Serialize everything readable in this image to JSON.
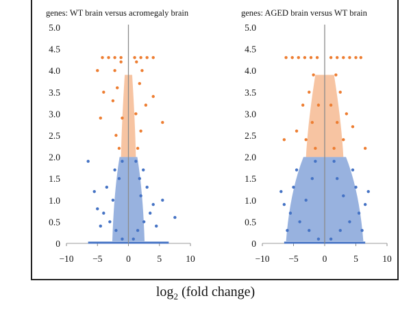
{
  "chart_data": [
    {
      "type": "scatter",
      "title": "genes: WT brain versus acromegaly brain",
      "xlabel": "log2 (fold change)",
      "ylabel": "",
      "xlim": [
        -10,
        10
      ],
      "ylim": [
        0,
        5.0
      ],
      "xticks": [
        "−10",
        "−5",
        "0",
        "5",
        "10"
      ],
      "yticks": [
        "0",
        "0.5",
        "1.0",
        "1.5",
        "2.0",
        "2.5",
        "3.0",
        "3.5",
        "4.0",
        "4.5",
        "5.0"
      ],
      "threshold_y": 2.0,
      "series": [
        {
          "color": "#4472c4",
          "points": [
            [
              -1.0,
              0.1
            ],
            [
              0.8,
              0.1
            ],
            [
              -2.0,
              0.3
            ],
            [
              1.5,
              0.3
            ],
            [
              -3.0,
              0.5
            ],
            [
              2.5,
              0.5
            ],
            [
              -4.0,
              0.7
            ],
            [
              3.5,
              0.7
            ],
            [
              -5.0,
              0.8
            ],
            [
              4.0,
              0.9
            ],
            [
              -2.5,
              1.0
            ],
            [
              2.0,
              1.1
            ],
            [
              -3.5,
              1.3
            ],
            [
              3.0,
              1.3
            ],
            [
              -1.5,
              1.5
            ],
            [
              1.8,
              1.5
            ],
            [
              -2.2,
              1.7
            ],
            [
              2.4,
              1.7
            ],
            [
              -1.0,
              1.9
            ],
            [
              1.2,
              1.9
            ],
            [
              -6.5,
              1.9
            ],
            [
              -5.5,
              1.2
            ],
            [
              5.5,
              1.0
            ],
            [
              7.5,
              0.6
            ],
            [
              -4.5,
              0.4
            ],
            [
              4.5,
              0.4
            ]
          ]
        },
        {
          "color": "#ed7d31",
          "points": [
            [
              -1.5,
              2.2
            ],
            [
              1.5,
              2.2
            ],
            [
              -2.0,
              2.5
            ],
            [
              2.0,
              2.6
            ],
            [
              -1.0,
              2.9
            ],
            [
              1.2,
              3.0
            ],
            [
              -2.5,
              3.3
            ],
            [
              2.8,
              3.2
            ],
            [
              -1.8,
              3.6
            ],
            [
              1.8,
              3.7
            ],
            [
              -2.2,
              4.0
            ],
            [
              2.2,
              4.0
            ],
            [
              -1.2,
              4.2
            ],
            [
              1.3,
              4.2
            ],
            [
              -4.5,
              2.9
            ],
            [
              5.5,
              2.8
            ],
            [
              -4.0,
              3.5
            ],
            [
              4.0,
              3.4
            ],
            [
              -5.0,
              4.0
            ],
            [
              -4.2,
              4.3
            ],
            [
              -3.2,
              4.3
            ],
            [
              -2.2,
              4.3
            ],
            [
              -1.2,
              4.3
            ],
            [
              1.0,
              4.3
            ],
            [
              2.0,
              4.3
            ],
            [
              3.0,
              4.3
            ],
            [
              4.0,
              4.3
            ]
          ]
        }
      ]
    },
    {
      "type": "scatter",
      "title": "genes: AGED brain versus WT brain",
      "xlabel": "log2 (fold change)",
      "ylabel": "",
      "xlim": [
        -10,
        10
      ],
      "ylim": [
        0,
        5.0
      ],
      "xticks": [
        "−10",
        "−5",
        "0",
        "5",
        "10"
      ],
      "yticks": [
        "0",
        "0.5",
        "1.0",
        "1.5",
        "2.0",
        "2.5",
        "3.0",
        "3.5",
        "4.0",
        "4.5",
        "5.0"
      ],
      "threshold_y": 2.0,
      "series": [
        {
          "color": "#4472c4",
          "points": [
            [
              -1.0,
              0.1
            ],
            [
              1.0,
              0.1
            ],
            [
              -2.5,
              0.3
            ],
            [
              2.5,
              0.3
            ],
            [
              -4.0,
              0.5
            ],
            [
              4.0,
              0.5
            ],
            [
              -5.5,
              0.7
            ],
            [
              5.5,
              0.7
            ],
            [
              -6.5,
              0.9
            ],
            [
              6.5,
              0.9
            ],
            [
              -3.0,
              1.0
            ],
            [
              3.0,
              1.1
            ],
            [
              -5.0,
              1.3
            ],
            [
              5.0,
              1.3
            ],
            [
              -2.0,
              1.5
            ],
            [
              2.0,
              1.5
            ],
            [
              -4.5,
              1.7
            ],
            [
              4.5,
              1.7
            ],
            [
              -1.5,
              1.9
            ],
            [
              1.5,
              1.9
            ],
            [
              -7.0,
              1.2
            ],
            [
              7.0,
              1.2
            ],
            [
              -6.0,
              0.3
            ],
            [
              6.0,
              0.3
            ]
          ]
        },
        {
          "color": "#ed7d31",
          "points": [
            [
              -1.5,
              2.2
            ],
            [
              1.5,
              2.2
            ],
            [
              -3.0,
              2.4
            ],
            [
              3.0,
              2.4
            ],
            [
              -2.0,
              2.8
            ],
            [
              2.0,
              2.8
            ],
            [
              -1.0,
              3.2
            ],
            [
              1.0,
              3.2
            ],
            [
              -2.5,
              3.5
            ],
            [
              2.5,
              3.5
            ],
            [
              -1.8,
              3.9
            ],
            [
              1.8,
              3.9
            ],
            [
              -6.5,
              2.4
            ],
            [
              6.5,
              2.2
            ],
            [
              -4.5,
              2.6
            ],
            [
              4.5,
              2.7
            ],
            [
              -3.5,
              3.2
            ],
            [
              3.5,
              3.0
            ],
            [
              -6.2,
              4.3
            ],
            [
              -5.2,
              4.3
            ],
            [
              -4.2,
              4.3
            ],
            [
              -3.2,
              4.3
            ],
            [
              -2.2,
              4.3
            ],
            [
              -1.2,
              4.3
            ],
            [
              1.0,
              4.3
            ],
            [
              2.0,
              4.3
            ],
            [
              3.0,
              4.3
            ],
            [
              4.0,
              4.3
            ],
            [
              5.0,
              4.3
            ],
            [
              5.8,
              4.3
            ]
          ]
        }
      ]
    }
  ]
}
